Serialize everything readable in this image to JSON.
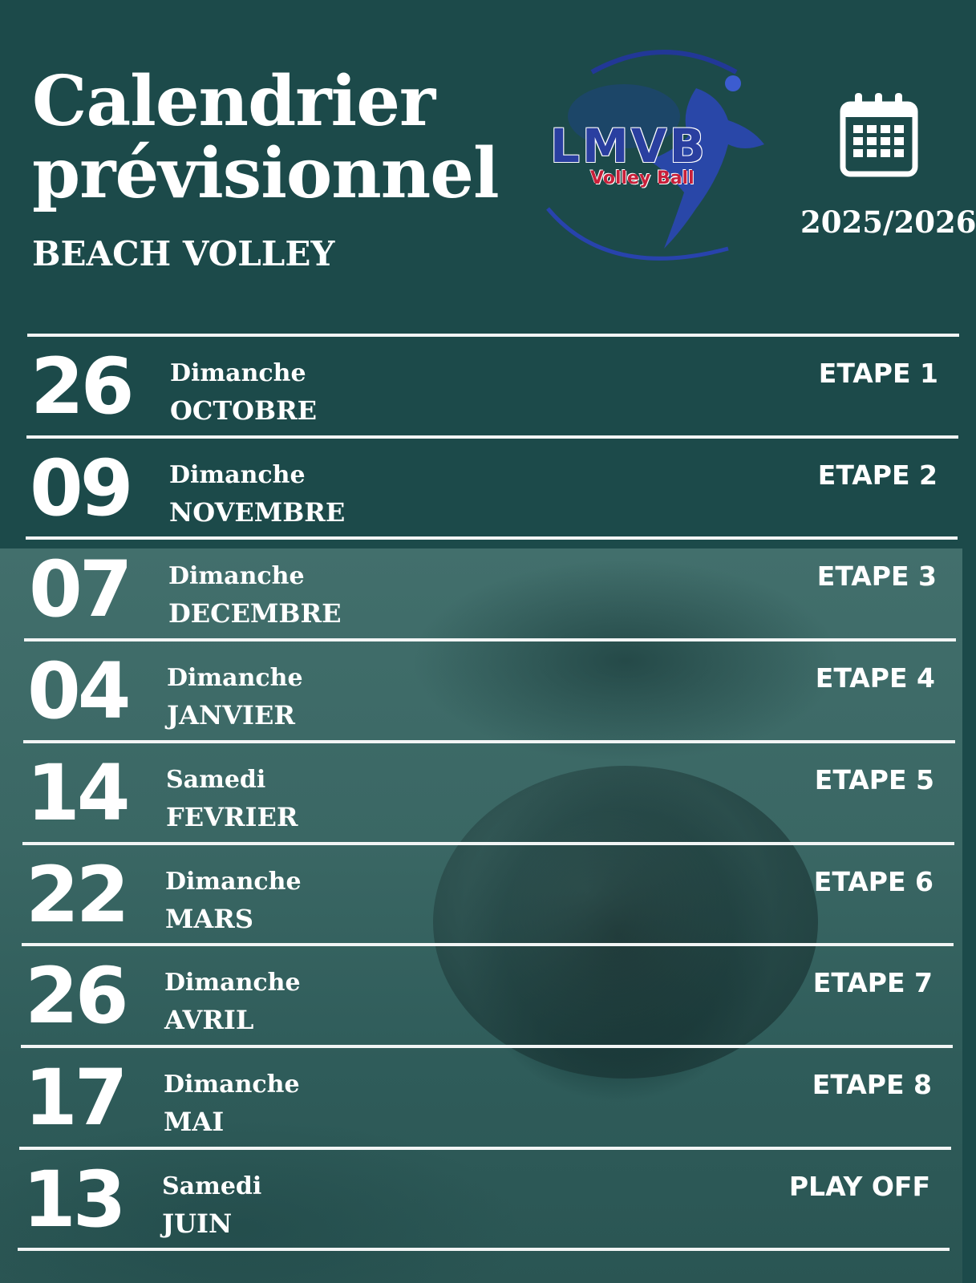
{
  "header": {
    "title_line1": "Calendrier",
    "title_line2": "prévisionnel",
    "subtitle": "BEACH VOLLEY",
    "logo_main": "LMVB",
    "logo_sub": "Volley Ball",
    "season": "2025/2026",
    "calendar_icon": "calendar-icon"
  },
  "colors": {
    "background_top": "#1c4a4a",
    "logo_blue": "#2a3fa0",
    "logo_red": "#c8203a",
    "text": "#ffffff"
  },
  "events": [
    {
      "day": "26",
      "weekday": "Dimanche",
      "month": "OCTOBRE",
      "stage": "ETAPE 1"
    },
    {
      "day": "09",
      "weekday": "Dimanche",
      "month": "NOVEMBRE",
      "stage": "ETAPE 2"
    },
    {
      "day": "07",
      "weekday": "Dimanche",
      "month": "DECEMBRE",
      "stage": "ETAPE 3"
    },
    {
      "day": "04",
      "weekday": "Dimanche",
      "month": "JANVIER",
      "stage": "ETAPE 4"
    },
    {
      "day": "14",
      "weekday": "Samedi",
      "month": "FEVRIER",
      "stage": "ETAPE 5"
    },
    {
      "day": "22",
      "weekday": "Dimanche",
      "month": "MARS",
      "stage": "ETAPE 6"
    },
    {
      "day": "26",
      "weekday": "Dimanche",
      "month": "AVRIL",
      "stage": "ETAPE 7"
    },
    {
      "day": "17",
      "weekday": "Dimanche",
      "month": "MAI",
      "stage": "ETAPE 8"
    },
    {
      "day": "13",
      "weekday": "Samedi",
      "month": "JUIN",
      "stage": "PLAY OFF"
    }
  ]
}
